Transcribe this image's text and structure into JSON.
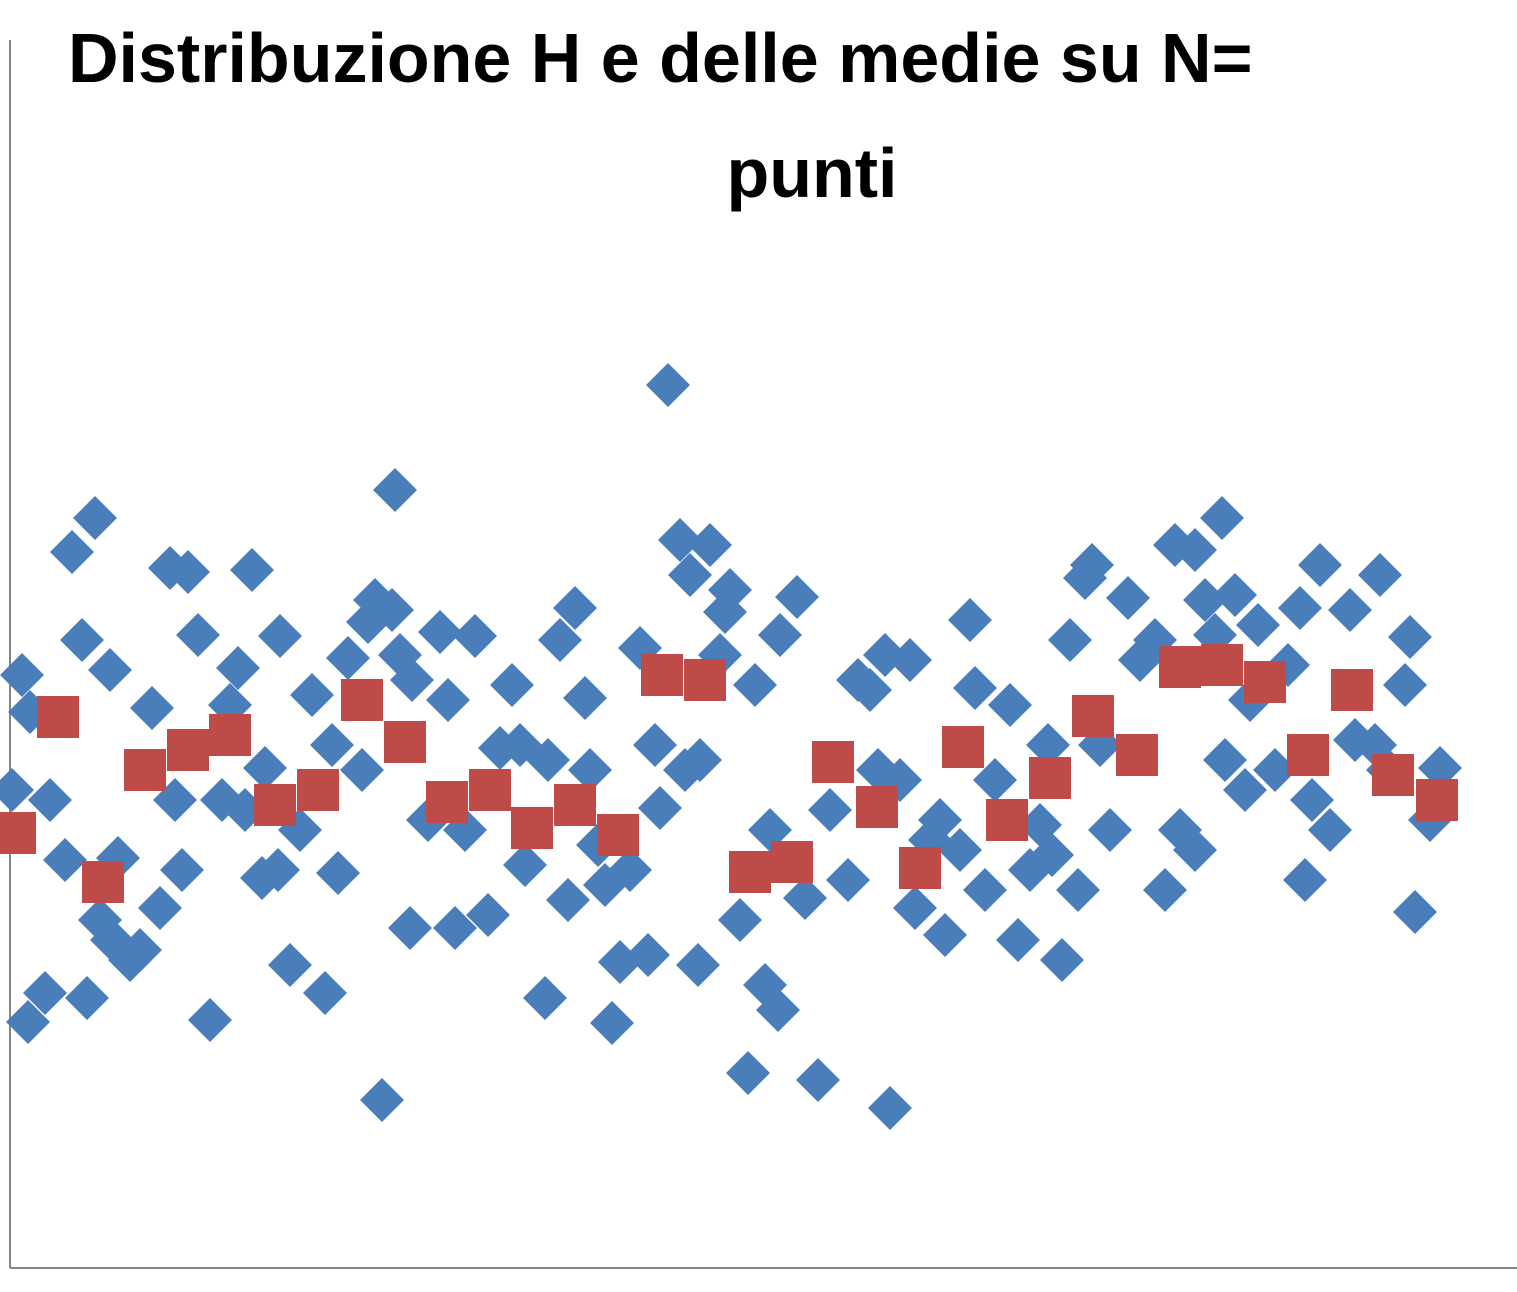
{
  "chart_data": {
    "type": "scatter",
    "title_lines": [
      "Distribuzione H e delle medie su N=",
      "punti"
    ],
    "xlim": [
      0,
      150.7
    ],
    "ylim": [
      0,
      122.8
    ],
    "series": [
      {
        "color": "#4a7ebb",
        "marker": "diamond",
        "x": [
          1.2,
          2,
          0.2,
          4,
          5.5,
          1.8,
          3.5,
          7.7,
          6.2,
          8.5,
          7.2,
          10,
          10.8,
          9,
          10.2,
          12,
          13,
          14.2,
          15,
          16,
          17.8,
          16.5,
          17.2,
          18.8,
          20,
          21.2,
          22.8,
          22,
          23.5,
          24.2,
          25.5,
          25.2,
          26.8,
          27,
          28,
          29,
          30.2,
          31.5,
          32.2,
          32.8,
          33.8,
          35.2,
          35.8,
          36.5,
          38.2,
          38.5,
          39,
          40.2,
          37.2,
          40,
          41.8,
          43,
          43.8,
          44.5,
          46.5,
          45.5,
          47.8,
          49,
          50.2,
          51,
          51.5,
          53.8,
          55,
          55.8,
          56.5,
          57.5,
          58,
          58.8,
          59.5,
          60.2,
          61,
          62,
          53.5,
          63,
          63.8,
          64.5,
          65,
          65.8,
          67,
          68,
          70,
          69,
          67.5,
          72,
          71.5,
          71,
          68.8,
          74.5,
          73,
          75.5,
          76.8,
          76,
          77,
          78.7,
          79.5,
          73.8,
          80.8,
          82,
          83.8,
          84.8,
          86,
          87.5,
          90,
          86.8,
          89,
          88,
          90.5,
          92,
          93.5,
          93,
          95,
          96,
          96.5,
          97.5,
          98.5,
          100,
          100.8,
          102,
          103,
          104.2,
          103.8,
          105.2,
          106,
          106.8,
          107.5,
          108.2,
          109,
          110,
          111.8,
          113,
          114.5,
          115.5,
          116.5,
          118.5,
          117,
          118.5,
          119.5,
          120.5,
          121.2,
          121.5,
          122.5,
          123.5,
          124.8,
          124,
          126.5,
          127.8,
          129,
          129.5,
          131,
          130.2,
          132,
          134,
          134.5,
          136.5,
          137,
          137.8,
          139.5,
          140,
          140.5,
          142,
          143
        ],
        "values": [
          59.3,
          55.6,
          47.8,
          46.8,
          40.8,
          24.6,
          27.5,
          27,
          71.6,
          75,
          62.8,
          59.8,
          41,
          34.8,
          32.8,
          30.8,
          31.8,
          56,
          36,
          70,
          69.6,
          46.8,
          39.8,
          63.3,
          24.8,
          46.8,
          60,
          56.3,
          45.8,
          69.8,
          50,
          39,
          39.8,
          63.2,
          30.3,
          43.8,
          57.3,
          27.5,
          52.3,
          39.5,
          61,
          49.8,
          64.6,
          66.8,
          65.8,
          77.8,
          61.3,
          58.8,
          16.8,
          34,
          44.8,
          63.6,
          56.8,
          34,
          63.2,
          43.8,
          35.3,
          52,
          58.3,
          52.3,
          40.3,
          50.8,
          62.8,
          36.8,
          66,
          57,
          49.8,
          42.3,
          38.3,
          24.5,
          30.6,
          39.8,
          27,
          62,
          31.3,
          52.3,
          46,
          88.3,
          72.8,
          69.3,
          72.3,
          50.8,
          49.8,
          67.8,
          65.6,
          61.3,
          30.3,
          58.3,
          34.8,
          28.3,
          25.8,
          43.8,
          63.3,
          67.1,
          37,
          19.5,
          18.8,
          45.8,
          38.8,
          58.8,
          57.8,
          61.3,
          60.8,
          49.8,
          48.8,
          16,
          36,
          42.8,
          33.3,
          44.8,
          41.8,
          64.8,
          58,
          37.8,
          48.8,
          56.3,
          32.8,
          39.8,
          44.3,
          41.3,
          52.3,
          30.8,
          62.8,
          37.8,
          69,
          70.3,
          52.3,
          43.8,
          67,
          60.8,
          62.8,
          37.8,
          72.3,
          71.8,
          43.8,
          41.8,
          66.8,
          63.3,
          75,
          50.8,
          67.3,
          47.8,
          64.3,
          56.8,
          49.8,
          60.3,
          66,
          38.8,
          70.3,
          46.8,
          43.8,
          65.8,
          52.8,
          52.3,
          69.3,
          49.8,
          58.3,
          63.1,
          35.6,
          44.8,
          50
        ]
      },
      {
        "color": "#be4b48",
        "marker": "square",
        "x": [
          0.5,
          4.8,
          9.3,
          13.5,
          17.8,
          22,
          26.5,
          30.8,
          35.2,
          39.5,
          43.7,
          48,
          52.2,
          56.5,
          60.8,
          65.2,
          69.5,
          74,
          78.2,
          82.3,
          86.7,
          91,
          95.3,
          99.7,
          104,
          108.3,
          112.7,
          117,
          121.2,
          125.5,
          129.8,
          134.2,
          138.3,
          142.7
        ],
        "values": [
          43.5,
          55.1,
          38.6,
          49.8,
          51.8,
          53.3,
          46.3,
          47.8,
          56.8,
          52.6,
          46.6,
          47.8,
          44,
          46.3,
          43.3,
          59.3,
          58.8,
          39.6,
          40.6,
          50.6,
          46.1,
          40,
          52.1,
          44.8,
          49,
          55.2,
          51.3,
          60.1,
          60.3,
          58.6,
          51.3,
          57.8,
          49.3,
          46.8
        ]
      }
    ]
  }
}
